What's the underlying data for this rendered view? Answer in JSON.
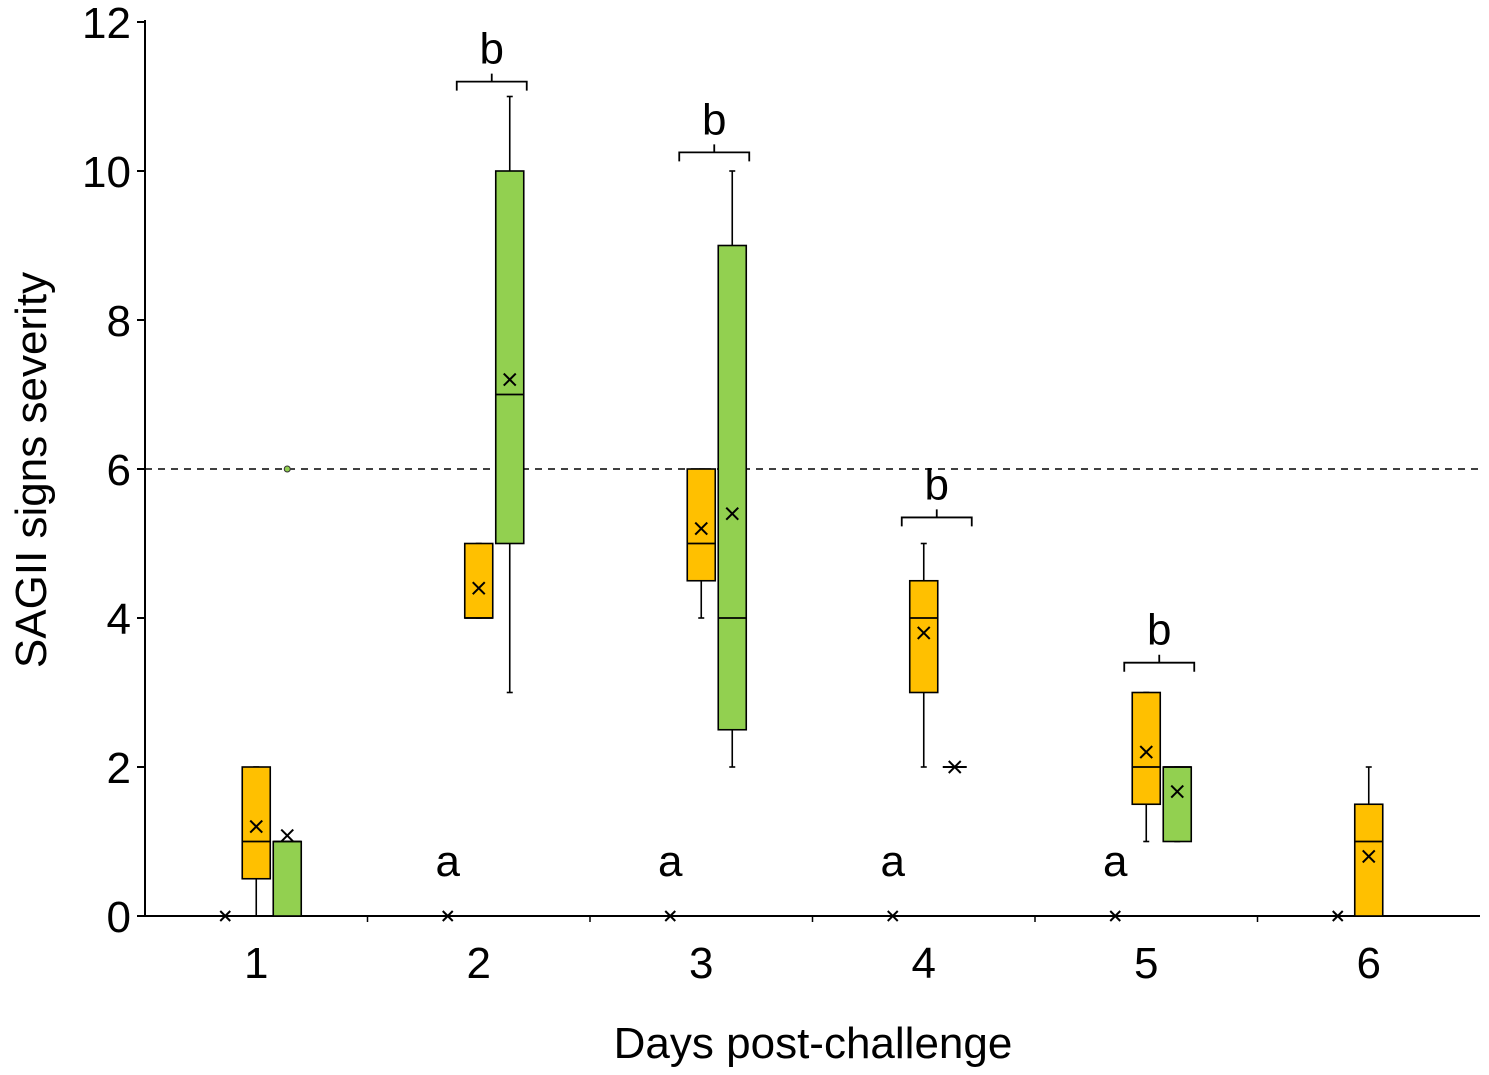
{
  "chart_data": {
    "type": "box",
    "title": "",
    "xlabel": "Days post-challenge",
    "ylabel": "SAGII signs severity",
    "categories": [
      "1",
      "2",
      "3",
      "4",
      "5",
      "6"
    ],
    "ylim": [
      0,
      12
    ],
    "yticks": [
      "0",
      "2",
      "4",
      "6",
      "8",
      "10",
      "12"
    ],
    "grid": false,
    "legend": "none",
    "threshold_line": {
      "y": 6,
      "style": "dashed"
    },
    "colors": {
      "control": "#000000",
      "orange": "#FFC000",
      "green": "#92D050",
      "stroke": "#000000"
    },
    "series": [
      {
        "color": "orange",
        "boxes": [
          {
            "day": "1",
            "min": 0,
            "q1": 0.5,
            "median": 1,
            "q3": 2,
            "max": 2,
            "mean": 1.2,
            "outliers": []
          },
          {
            "day": "2",
            "min": 4,
            "q1": 4,
            "median": 4,
            "q3": 5,
            "max": 5,
            "mean": 4.4,
            "outliers": []
          },
          {
            "day": "3",
            "min": 4,
            "q1": 4.5,
            "median": 5,
            "q3": 6,
            "max": 6,
            "mean": 5.2,
            "outliers": []
          },
          {
            "day": "4",
            "min": 2,
            "q1": 3,
            "median": 4,
            "q3": 4.5,
            "max": 5,
            "mean": 3.8,
            "outliers": []
          },
          {
            "day": "5",
            "min": 1,
            "q1": 1.5,
            "median": 2,
            "q3": 3,
            "max": 3,
            "mean": 2.2,
            "outliers": []
          },
          {
            "day": "6",
            "min": 0,
            "q1": 0,
            "median": 1,
            "q3": 1.5,
            "max": 2,
            "mean": 0.8,
            "outliers": []
          }
        ]
      },
      {
        "color": "green",
        "boxes": [
          {
            "day": "1",
            "min": 0,
            "q1": 0,
            "median": 1,
            "q3": 1,
            "max": 1,
            "mean": 1.08,
            "outliers": [
              6
            ]
          },
          {
            "day": "2",
            "min": 3,
            "q1": 5,
            "median": 7,
            "q3": 10,
            "max": 11,
            "mean": 7.2,
            "outliers": []
          },
          {
            "day": "3",
            "min": 2,
            "q1": 2.5,
            "median": 4,
            "q3": 9,
            "max": 10,
            "mean": 5.4,
            "outliers": []
          },
          {
            "day": "4",
            "min": 2,
            "q1": 2,
            "median": 2,
            "q3": 2,
            "max": 2,
            "mean": 2,
            "outliers": []
          },
          {
            "day": "5",
            "min": 1,
            "q1": 1,
            "median": 2,
            "q3": 2,
            "max": 2,
            "mean": 1.67,
            "outliers": []
          }
        ]
      },
      {
        "color": "control",
        "means_at_zero": [
          "1",
          "2",
          "3",
          "4",
          "5",
          "6"
        ]
      }
    ],
    "significance_letters": [
      {
        "day": "2",
        "letter": "a",
        "level": "low"
      },
      {
        "day": "3",
        "letter": "a",
        "level": "low"
      },
      {
        "day": "4",
        "letter": "a",
        "level": "low"
      },
      {
        "day": "5",
        "letter": "a",
        "level": "low"
      },
      {
        "day": "2",
        "letter": "b",
        "level": "bracket",
        "y": 11.2
      },
      {
        "day": "3",
        "letter": "b",
        "level": "bracket",
        "y": 10.25
      },
      {
        "day": "4",
        "letter": "b",
        "level": "bracket",
        "y": 5.35
      },
      {
        "day": "5",
        "letter": "b",
        "level": "bracket",
        "y": 3.4
      }
    ]
  }
}
